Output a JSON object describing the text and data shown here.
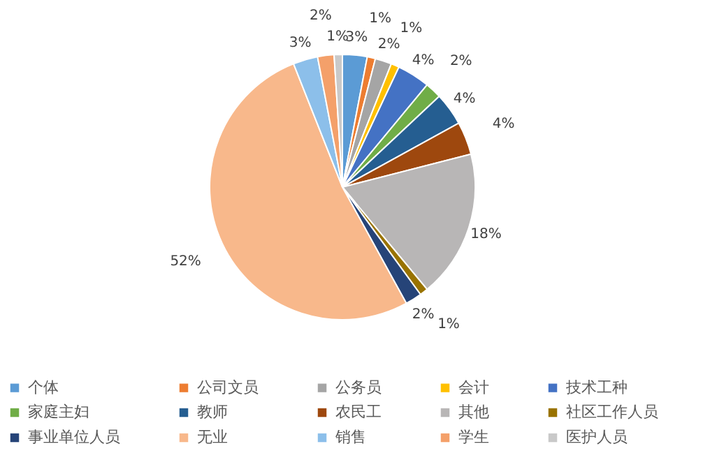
{
  "chart_data": {
    "type": "pie",
    "categories": [
      "个体",
      "公司文员",
      "公务员",
      "会计",
      "技术工种",
      "家庭主妇",
      "教师",
      "农民工",
      "其他",
      "社区工作人员",
      "事业单位人员",
      "无业",
      "销售",
      "学生",
      "医护人员"
    ],
    "values": [
      3,
      1,
      2,
      1,
      4,
      2,
      4,
      4,
      18,
      1,
      2,
      52,
      3,
      2,
      1
    ],
    "colors": [
      "#5b9bd5",
      "#ed7d31",
      "#a5a5a5",
      "#ffc000",
      "#4472c4",
      "#70ad47",
      "#255e91",
      "#9e480e",
      "#b8b6b6",
      "#997300",
      "#264478",
      "#f8b88b",
      "#8cbfea",
      "#f4a06a",
      "#c9c9c9"
    ],
    "value_labels": [
      "3%",
      "1%",
      "2%",
      "1%",
      "4%",
      "2%",
      "4%",
      "4%",
      "18%",
      "1%",
      "2%",
      "52%",
      "3%",
      "2%",
      "1%"
    ],
    "legend": "bottom"
  }
}
